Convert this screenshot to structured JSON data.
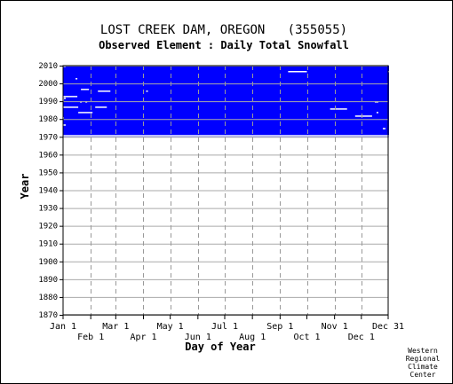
{
  "chart_data": {
    "type": "heatmap",
    "title": "LOST CREEK DAM, OREGON   (355055)",
    "subtitle": "Observed Element : Daily Total Snowfall",
    "xlabel": "Day of Year",
    "ylabel": "Year",
    "ylim": [
      1870,
      2010
    ],
    "xlim": [
      1,
      365
    ],
    "yticks": [
      1870,
      1880,
      1890,
      1900,
      1910,
      1920,
      1930,
      1940,
      1950,
      1960,
      1970,
      1980,
      1990,
      2000,
      2010
    ],
    "xticks_upper": [
      {
        "label": "Jan 1",
        "day": 1
      },
      {
        "label": "Mar 1",
        "day": 60
      },
      {
        "label": "May 1",
        "day": 121
      },
      {
        "label": "Jul 1",
        "day": 182
      },
      {
        "label": "Sep 1",
        "day": 244
      },
      {
        "label": "Nov 1",
        "day": 305
      },
      {
        "label": "Dec 31",
        "day": 365
      }
    ],
    "xticks_lower": [
      {
        "label": "Feb 1",
        "day": 32
      },
      {
        "label": "Apr 1",
        "day": 91
      },
      {
        "label": "Jun 1",
        "day": 152
      },
      {
        "label": "Aug 1",
        "day": 213
      },
      {
        "label": "Oct 1",
        "day": 274
      },
      {
        "label": "Dec 1",
        "day": 335
      }
    ],
    "grid": true,
    "data_color": "#0000ff",
    "missing_color": "#ffffff",
    "data_coverage": {
      "start_year": 1970,
      "end_year": 2010,
      "start_day": 1,
      "end_day": 365
    },
    "missing_records": [
      {
        "year": 2009,
        "start_day": 1,
        "end_day": 3
      },
      {
        "year": 2006,
        "start_day": 365,
        "end_day": 365
      },
      {
        "year": 2006,
        "start_day": 253,
        "end_day": 273
      },
      {
        "year": 2002,
        "start_day": 15,
        "end_day": 16
      },
      {
        "year": 1996,
        "start_day": 21,
        "end_day": 29
      },
      {
        "year": 1995,
        "start_day": 40,
        "end_day": 53
      },
      {
        "year": 1995,
        "start_day": 94,
        "end_day": 95
      },
      {
        "year": 1992,
        "start_day": 1,
        "end_day": 16
      },
      {
        "year": 1991,
        "start_day": 1,
        "end_day": 3
      },
      {
        "year": 1990,
        "start_day": 1,
        "end_day": 1
      },
      {
        "year": 1989,
        "start_day": 20,
        "end_day": 21
      },
      {
        "year": 1989,
        "start_day": 26,
        "end_day": 27
      },
      {
        "year": 1989,
        "start_day": 350,
        "end_day": 353
      },
      {
        "year": 1986,
        "start_day": 1,
        "end_day": 17
      },
      {
        "year": 1986,
        "start_day": 37,
        "end_day": 49
      },
      {
        "year": 1985,
        "start_day": 300,
        "end_day": 318
      },
      {
        "year": 1983,
        "start_day": 18,
        "end_day": 33
      },
      {
        "year": 1983,
        "start_day": 352,
        "end_day": 353
      },
      {
        "year": 1981,
        "start_day": 328,
        "end_day": 346
      },
      {
        "year": 1980,
        "start_day": 1,
        "end_day": 1
      },
      {
        "year": 1976,
        "start_day": 1,
        "end_day": 3
      },
      {
        "year": 1974,
        "start_day": 359,
        "end_day": 361
      },
      {
        "year": 1970,
        "start_day": 1,
        "end_day": 365
      }
    ]
  },
  "credit": [
    "Western",
    "Regional",
    "Climate",
    "Center"
  ]
}
